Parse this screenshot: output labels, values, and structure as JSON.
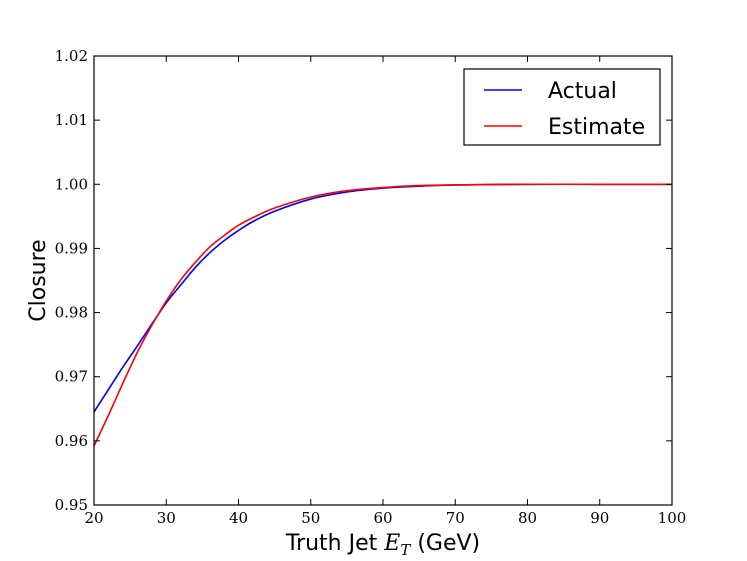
{
  "chart_data": {
    "type": "line",
    "xlabel_prefix": "Truth Jet ",
    "xlabel_math": "E",
    "xlabel_math_sub": "T",
    "xlabel_suffix": " (GeV)",
    "ylabel": "Closure",
    "xlim": [
      20,
      100
    ],
    "ylim": [
      0.95,
      1.02
    ],
    "xticks": [
      20,
      30,
      40,
      50,
      60,
      70,
      80,
      90,
      100
    ],
    "xtick_labels": [
      "20",
      "30",
      "40",
      "50",
      "60",
      "70",
      "80",
      "90",
      "100"
    ],
    "yticks": [
      0.95,
      0.96,
      0.97,
      0.98,
      0.99,
      1.0,
      1.01,
      1.02
    ],
    "ytick_labels": [
      "0.95",
      "0.96",
      "0.97",
      "0.98",
      "0.99",
      "1.00",
      "1.01",
      "1.02"
    ],
    "grid": false,
    "legend_position": "top-right",
    "series": [
      {
        "name": "Actual",
        "color": "#0000ff",
        "x": [
          20,
          22,
          24,
          26,
          28,
          30,
          32,
          34,
          36,
          38,
          40,
          42,
          45,
          50,
          55,
          60,
          65,
          70,
          80,
          90,
          100
        ],
        "y": [
          0.9645,
          0.968,
          0.9715,
          0.9748,
          0.9782,
          0.9815,
          0.9843,
          0.987,
          0.9893,
          0.9912,
          0.9928,
          0.9942,
          0.9958,
          0.9977,
          0.9988,
          0.9994,
          0.9997,
          0.9999,
          1.0,
          1.0,
          1.0
        ]
      },
      {
        "name": "Estimate",
        "color": "#ff0000",
        "x": [
          20,
          22,
          24,
          26,
          28,
          30,
          32,
          34,
          36,
          38,
          40,
          42,
          45,
          50,
          55,
          60,
          65,
          70,
          80,
          90,
          100
        ],
        "y": [
          0.9592,
          0.964,
          0.969,
          0.9738,
          0.978,
          0.9818,
          0.9851,
          0.9878,
          0.9902,
          0.992,
          0.9936,
          0.9948,
          0.9963,
          0.998,
          0.999,
          0.9995,
          0.9998,
          0.9999,
          1.0,
          1.0,
          1.0
        ]
      }
    ]
  }
}
